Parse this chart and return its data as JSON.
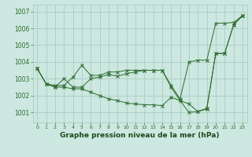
{
  "background_color": "#cce8e0",
  "grid_color": "#aaccC4",
  "line_color": "#2d6b2d",
  "marker_color": "#2d6b2d",
  "title": "Graphe pression niveau de la mer (hPa)",
  "title_fontsize": 6.5,
  "title_color": "#1a4a1a",
  "xlim": [
    -0.5,
    23.5
  ],
  "ylim": [
    1000.4,
    1007.4
  ],
  "yticks": [
    1001,
    1002,
    1003,
    1004,
    1005,
    1006,
    1007
  ],
  "xticks": [
    0,
    1,
    2,
    3,
    4,
    5,
    6,
    7,
    8,
    9,
    10,
    11,
    12,
    13,
    14,
    15,
    16,
    17,
    18,
    19,
    20,
    21,
    22,
    23
  ],
  "series": [
    {
      "x": [
        0,
        1,
        2,
        3,
        4,
        5,
        6,
        7,
        8,
        9,
        10,
        11,
        12,
        13,
        14,
        15,
        16,
        17,
        18,
        19,
        20,
        21,
        22,
        23
      ],
      "y": [
        1003.6,
        1002.7,
        1002.6,
        1002.6,
        1003.1,
        1003.8,
        1003.2,
        1003.2,
        1003.4,
        1003.4,
        1003.5,
        1003.5,
        1003.5,
        1003.5,
        1003.5,
        1002.6,
        1001.8,
        1004.0,
        1004.1,
        1004.1,
        1006.3,
        1006.3,
        1006.35,
        1006.75
      ]
    },
    {
      "x": [
        0,
        1,
        2,
        3,
        4,
        5,
        6,
        7,
        8,
        9,
        10,
        11,
        12,
        13,
        14,
        15,
        16,
        17,
        18,
        19,
        20,
        21,
        22,
        23
      ],
      "y": [
        1003.6,
        1002.7,
        1002.5,
        1003.0,
        1002.5,
        1002.5,
        1003.0,
        1003.1,
        1003.25,
        1003.15,
        1003.3,
        1003.4,
        1003.5,
        1003.5,
        1003.5,
        1002.5,
        1001.7,
        1001.5,
        1001.05,
        1001.2,
        1004.5,
        1004.5,
        1006.2,
        1006.75
      ]
    },
    {
      "x": [
        0,
        1,
        2,
        3,
        4,
        5,
        6,
        7,
        8,
        9,
        10,
        11,
        12,
        13,
        14,
        15,
        16,
        17,
        18,
        19,
        20,
        21,
        22,
        23
      ],
      "y": [
        1003.6,
        1002.7,
        1002.5,
        1002.5,
        1002.4,
        1002.4,
        1002.2,
        1002.0,
        1001.8,
        1001.7,
        1001.55,
        1001.5,
        1001.45,
        1001.45,
        1001.4,
        1001.9,
        1001.7,
        1001.0,
        1001.05,
        1001.25,
        1004.5,
        1004.5,
        1006.2,
        1006.75
      ]
    }
  ]
}
